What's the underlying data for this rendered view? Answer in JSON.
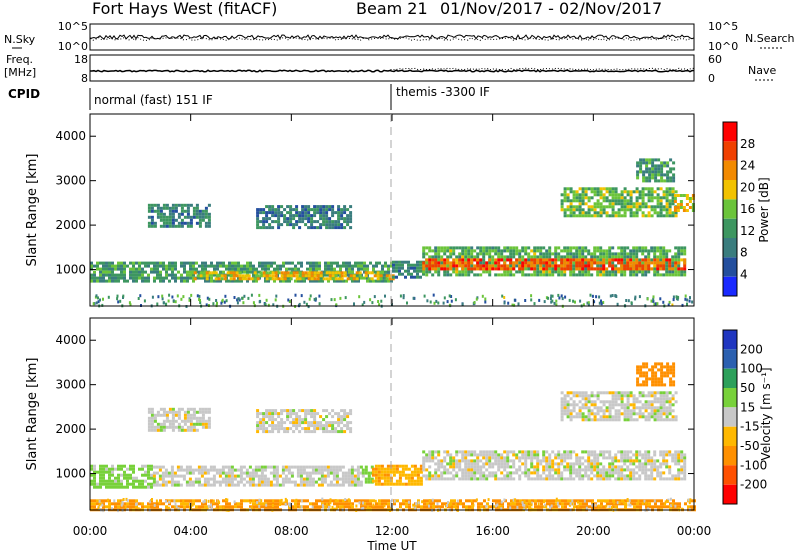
{
  "header": {
    "title": "Fort Hays West (fitACF)",
    "beam": "Beam 21",
    "date_range": "01/Nov/2017 - 02/Nov/2017"
  },
  "noise_panel": {
    "left_label": "N.Sky",
    "right_label": "N.Search",
    "left_ticks": [
      "10^5",
      "10^0"
    ],
    "right_ticks": [
      "10^5",
      "10^0"
    ]
  },
  "freq_panel": {
    "left_label": "Freq.",
    "left_unit": "[MHz]",
    "right_label": "Nave",
    "left_ticks": [
      "18",
      "8"
    ],
    "right_ticks": [
      "60",
      "0"
    ]
  },
  "cpid_panel": {
    "label": "CPID",
    "modes": [
      {
        "text": "normal (fast) 151 IF",
        "start_hour": 0
      },
      {
        "text": "themis -3300 IF",
        "start_hour": 12
      }
    ]
  },
  "colors": {
    "power_scale": [
      "#1a2aff",
      "#244f9e",
      "#3a7d7e",
      "#3d9660",
      "#6bc43a",
      "#f2c200",
      "#f28a00",
      "#f04000",
      "#ff0000"
    ],
    "velocity_scale": [
      "#ff0000",
      "#ff5000",
      "#ff9000",
      "#ffb800",
      "#c8c8c8",
      "#78d13a",
      "#2ca05a",
      "#2b60b0",
      "#2036c0"
    ],
    "ground_scatter": "#c8c8c8"
  },
  "chart_data": [
    {
      "type": "heatmap",
      "name": "power",
      "xlabel": "",
      "ylabel": "Slant Range [km]",
      "xlim": [
        0,
        24
      ],
      "ylim": [
        180,
        4500
      ],
      "yticks": [
        "1000",
        "2000",
        "3000",
        "4000"
      ],
      "colorbar": {
        "label": "Power [dB]",
        "range": [
          0,
          32
        ],
        "ticks": [
          "4",
          "8",
          "12",
          "16",
          "20",
          "24",
          "28"
        ]
      },
      "regions": [
        {
          "t0": 0.0,
          "t1": 12.0,
          "r0": 760,
          "r1": 1180,
          "level": 12
        },
        {
          "t0": 4.0,
          "t1": 12.0,
          "r0": 780,
          "r1": 960,
          "level": 20
        },
        {
          "t0": 12.0,
          "t1": 13.2,
          "r0": 800,
          "r1": 1200,
          "level": 10
        },
        {
          "t0": 13.2,
          "t1": 23.6,
          "r0": 900,
          "r1": 1520,
          "level": 14
        },
        {
          "t0": 13.2,
          "t1": 23.6,
          "r0": 1000,
          "r1": 1250,
          "level": 26
        },
        {
          "t0": 2.3,
          "t1": 4.7,
          "r0": 2000,
          "r1": 2480,
          "level": 10
        },
        {
          "t0": 6.6,
          "t1": 10.3,
          "r0": 1950,
          "r1": 2450,
          "level": 9
        },
        {
          "t0": 18.7,
          "t1": 23.3,
          "r0": 2200,
          "r1": 2850,
          "level": 15
        },
        {
          "t0": 21.7,
          "t1": 23.2,
          "r0": 3000,
          "r1": 3500,
          "level": 12
        },
        {
          "t0": 23.2,
          "t1": 24.0,
          "r0": 2300,
          "r1": 2700,
          "level": 20
        }
      ]
    },
    {
      "type": "heatmap",
      "name": "velocity",
      "xlabel": "Time UT",
      "ylabel": "Slant Range [km]",
      "xlim": [
        0,
        24
      ],
      "ylim": [
        180,
        4500
      ],
      "xticks": [
        "00:00",
        "04:00",
        "08:00",
        "12:00",
        "16:00",
        "20:00",
        "00:00"
      ],
      "yticks": [
        "1000",
        "2000",
        "3000",
        "4000"
      ],
      "colorbar": {
        "label": "Velocity [m s⁻¹]",
        "ticks": [
          "200",
          "100",
          "50",
          "15",
          "-15",
          "-50",
          "-100",
          "-200"
        ]
      },
      "regions": [
        {
          "t0": 0.0,
          "t1": 2.5,
          "r0": 700,
          "r1": 1200,
          "vel": 30
        },
        {
          "t0": 2.5,
          "t1": 10.8,
          "r0": 760,
          "r1": 1180,
          "vel": 0
        },
        {
          "t0": 10.8,
          "t1": 11.2,
          "r0": 780,
          "r1": 1180,
          "vel": 30
        },
        {
          "t0": 11.2,
          "t1": 13.2,
          "r0": 780,
          "r1": 1200,
          "vel": -40
        },
        {
          "t0": 13.2,
          "t1": 23.6,
          "r0": 900,
          "r1": 1520,
          "vel": 0
        },
        {
          "t0": 0.0,
          "t1": 24.0,
          "r0": 200,
          "r1": 420,
          "vel": -60
        },
        {
          "t0": 2.3,
          "t1": 4.7,
          "r0": 2000,
          "r1": 2480,
          "vel": 0
        },
        {
          "t0": 6.6,
          "t1": 10.3,
          "r0": 1950,
          "r1": 2450,
          "vel": 0
        },
        {
          "t0": 18.7,
          "t1": 23.3,
          "r0": 2200,
          "r1": 2850,
          "vel": 0
        },
        {
          "t0": 21.7,
          "t1": 23.2,
          "r0": 3000,
          "r1": 3500,
          "vel": -80
        }
      ]
    }
  ]
}
